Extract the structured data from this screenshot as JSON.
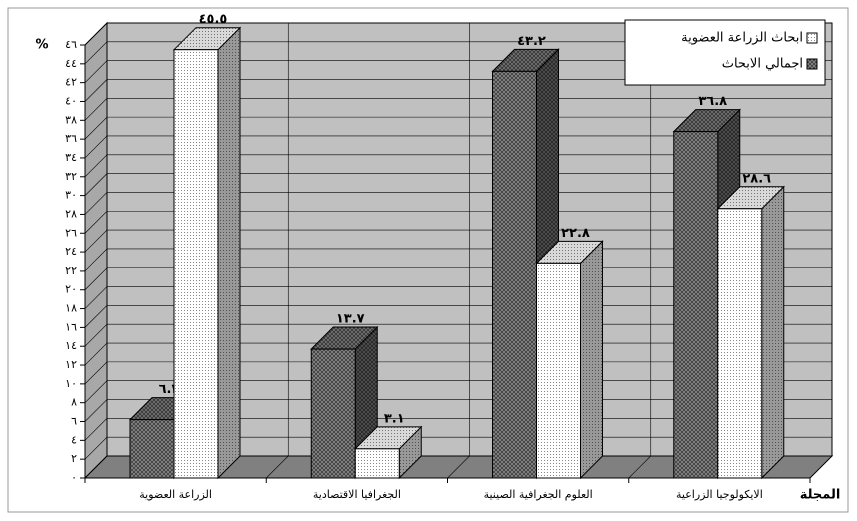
{
  "chart_data": {
    "type": "bar3d",
    "y_label": "%",
    "x_label": "المجلة",
    "categories": [
      "الزراعة العضوية",
      "الجغرافيا الاقتصادية",
      "العلوم الجغرافية الصينية",
      "الايكولوجيا الزراعية"
    ],
    "series": [
      {
        "name": "اجمالي الابحاث",
        "color": "#4a4a4a",
        "values": [
          6.2,
          13.7,
          43.2,
          36.8
        ],
        "value_labels": [
          "٦.٢",
          "١٣.٧",
          "٤٣.٢",
          "٣٦.٨"
        ]
      },
      {
        "name": "ابحاث الزراعة العضوية",
        "color": "#ffffff",
        "values": [
          45.5,
          3.1,
          22.8,
          28.6
        ],
        "value_labels": [
          "٤٥.٥",
          "٣.١",
          "٢٢.٨",
          "٢٨.٦"
        ]
      }
    ],
    "ylim": [
      0,
      46
    ],
    "yticks": [
      {
        "value": 0,
        "label": "٠"
      },
      {
        "value": 2,
        "label": "٢"
      },
      {
        "value": 4,
        "label": "٤"
      },
      {
        "value": 6,
        "label": "٦"
      },
      {
        "value": 8,
        "label": "٨"
      },
      {
        "value": 10,
        "label": "١٠"
      },
      {
        "value": 12,
        "label": "١٢"
      },
      {
        "value": 14,
        "label": "١٤"
      },
      {
        "value": 16,
        "label": "١٦"
      },
      {
        "value": 18,
        "label": "١٨"
      },
      {
        "value": 20,
        "label": "٢٠"
      },
      {
        "value": 22,
        "label": "٢٢"
      },
      {
        "value": 24,
        "label": "٢٤"
      },
      {
        "value": 26,
        "label": "٢٦"
      },
      {
        "value": 28,
        "label": "٢٨"
      },
      {
        "value": 30,
        "label": "٣٠"
      },
      {
        "value": 32,
        "label": "٣٢"
      },
      {
        "value": 34,
        "label": "٣٤"
      },
      {
        "value": 36,
        "label": "٣٦"
      },
      {
        "value": 38,
        "label": "٣٨"
      },
      {
        "value": 40,
        "label": "٤٠"
      },
      {
        "value": 42,
        "label": "٤٢"
      },
      {
        "value": 44,
        "label": "٤٤"
      },
      {
        "value": 46,
        "label": "٤٦"
      }
    ],
    "grid": true,
    "legend": "top-right"
  }
}
